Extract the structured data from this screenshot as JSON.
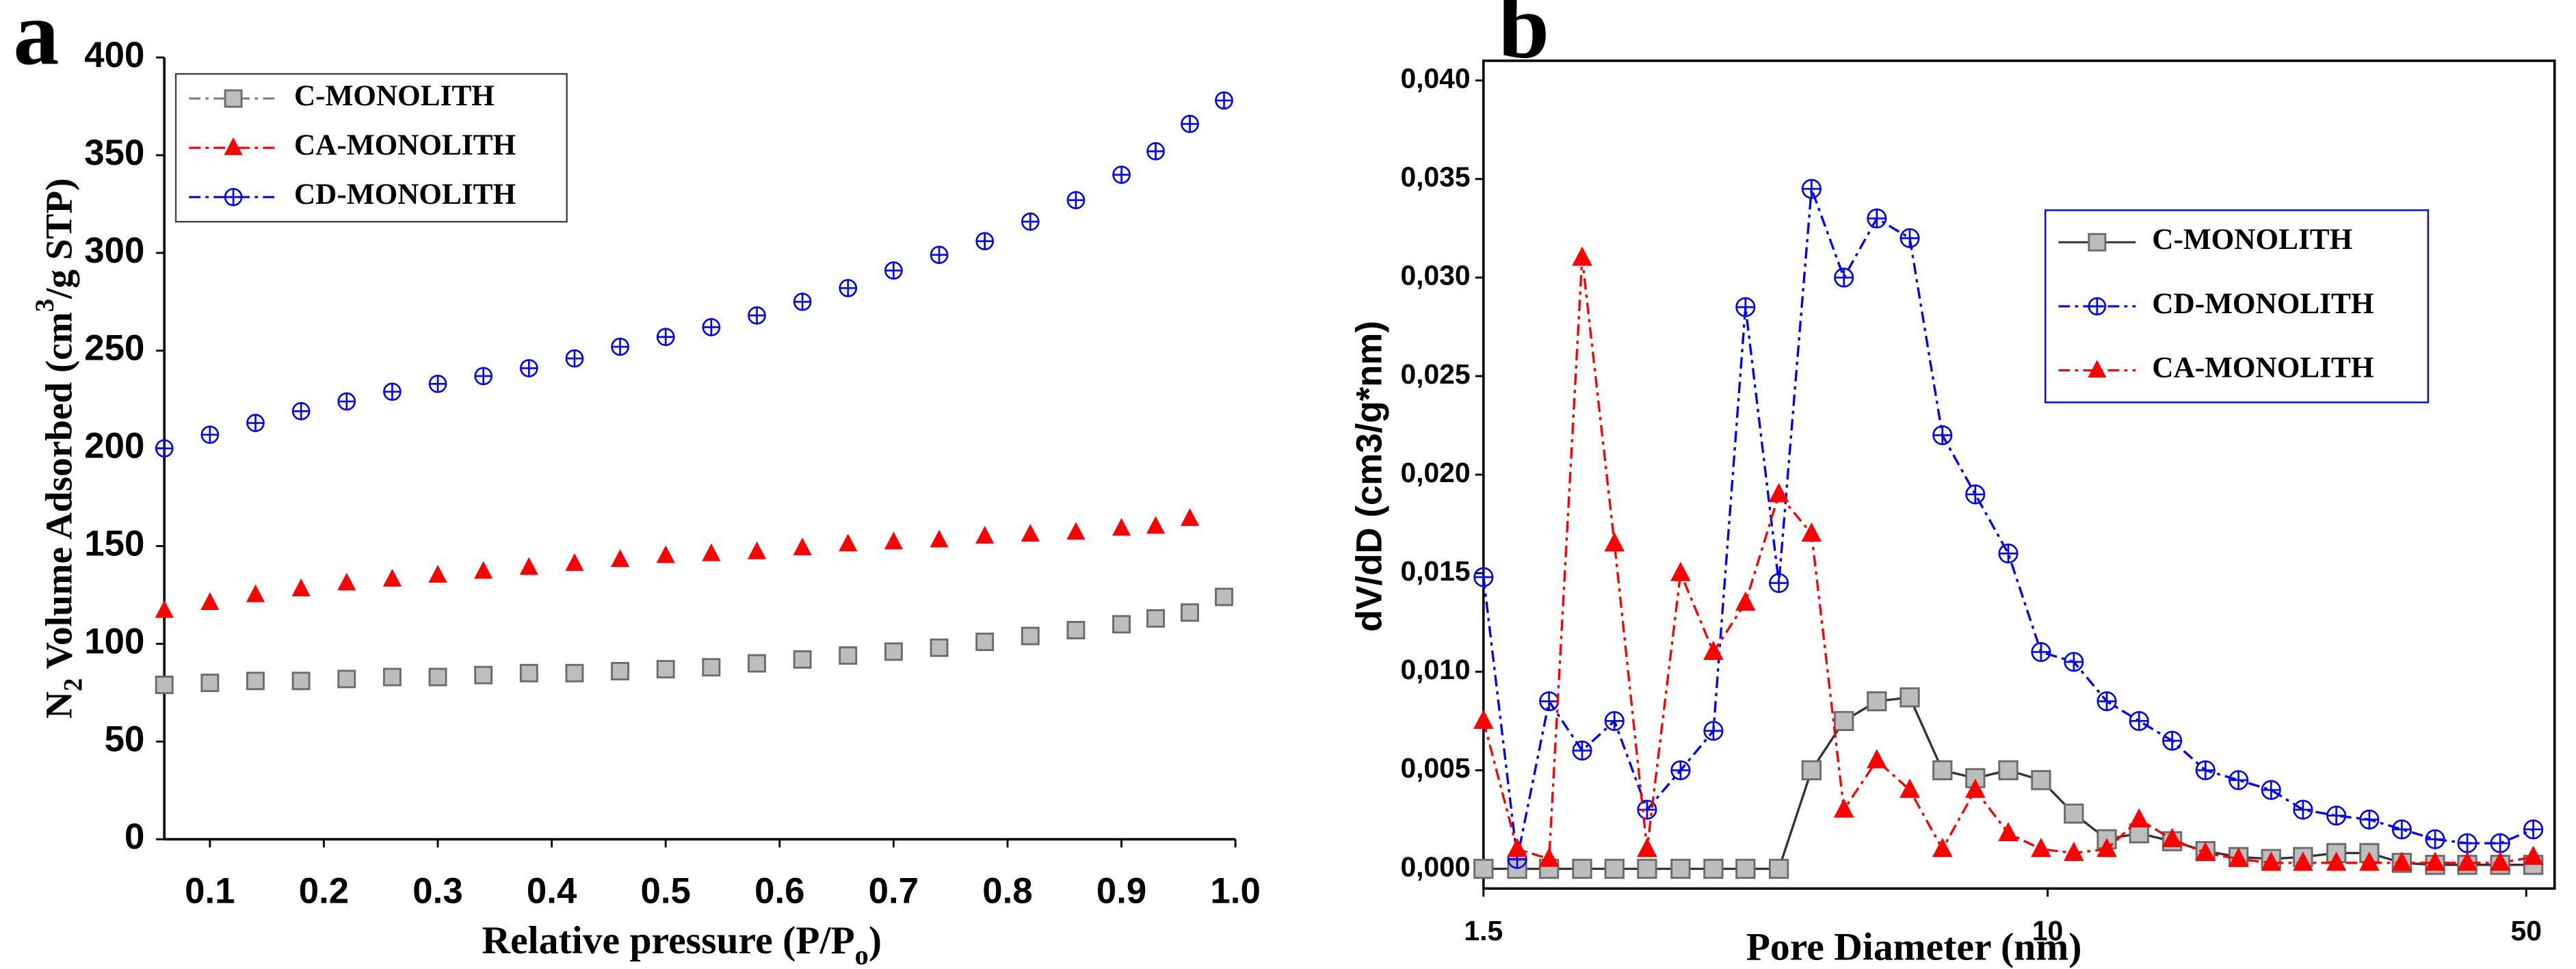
{
  "chart_data": [
    {
      "type": "scatter",
      "title": "a",
      "xlabel": [
        "Relative pressure (P/P",
        "o",
        ")"
      ],
      "ylabel": [
        "N",
        "2",
        " Volume Adsorbed (cm",
        "3",
        "/g STP)"
      ],
      "x": [
        0.06,
        0.1,
        0.14,
        0.18,
        0.22,
        0.26,
        0.3,
        0.34,
        0.38,
        0.42,
        0.46,
        0.5,
        0.54,
        0.58,
        0.62,
        0.66,
        0.7,
        0.74,
        0.78,
        0.82,
        0.86,
        0.9,
        0.93,
        0.96,
        0.99
      ],
      "series": [
        {
          "name": "C-MONOLITH",
          "color": "#808080",
          "marker": "square",
          "values": [
            79,
            80,
            81,
            81,
            82,
            83,
            83,
            84,
            85,
            85,
            86,
            87,
            88,
            90,
            92,
            94,
            96,
            98,
            101,
            104,
            107,
            110,
            113,
            116,
            124
          ]
        },
        {
          "name": "CA-MONOLITH",
          "color": "#ff0000",
          "marker": "triangle",
          "values": [
            117,
            121,
            125,
            128,
            131,
            133,
            135,
            137,
            139,
            141,
            143,
            145,
            146,
            147,
            149,
            151,
            152,
            153,
            155,
            156,
            157,
            159,
            160,
            164,
            null
          ]
        },
        {
          "name": "CD-MONOLITH",
          "color": "#0000ff",
          "marker": "circle-cross",
          "values": [
            200,
            207,
            213,
            219,
            224,
            229,
            233,
            237,
            241,
            246,
            252,
            257,
            262,
            268,
            275,
            282,
            291,
            299,
            306,
            316,
            327,
            340,
            352,
            366,
            378
          ]
        }
      ],
      "xlim": [
        0.06,
        1.0
      ],
      "xticks": [
        0.1,
        0.2,
        0.3,
        0.4,
        0.5,
        0.6,
        0.7,
        0.8,
        0.9,
        {
          "value": 1,
          "label": "1.0"
        }
      ],
      "ylim": [
        0,
        400
      ],
      "yticks": [
        0,
        50,
        100,
        150,
        200,
        250,
        300,
        350,
        400
      ],
      "legend": "upper left"
    },
    {
      "type": "line",
      "title": "b",
      "xlabel": [
        "Pore Diameter (nm)"
      ],
      "ylabel": [
        "dV/dD (cm3/g*nm)"
      ],
      "xscale": "log",
      "x": [
        1.5,
        1.68,
        1.87,
        2.09,
        2.33,
        2.6,
        2.91,
        3.25,
        3.62,
        4.05,
        4.52,
        5.04,
        5.63,
        6.29,
        7.02,
        7.84,
        8.76,
        9.78,
        10.92,
        12.2,
        13.6,
        15.2,
        17,
        19,
        21.2,
        23.6,
        26.4,
        29.5,
        32.9,
        36.8,
        41,
        45.8,
        51.2
      ],
      "series": [
        {
          "name": "C-MONOLITH",
          "color": "#808080",
          "marker": "square",
          "linestyle": "solid",
          "values": [
            0,
            0,
            0,
            0,
            0,
            0,
            0,
            0,
            0,
            0,
            0.005,
            0.0075,
            0.0085,
            0.0087,
            0.005,
            0.0046,
            0.005,
            0.0045,
            0.0028,
            0.0015,
            0.0018,
            0.0014,
            0.0009,
            0.0006,
            0.0005,
            0.0006,
            0.0008,
            0.0008,
            0.0003,
            0.0002,
            0.0002,
            0.0002,
            0.0002
          ]
        },
        {
          "name": "CD-MONOLITH",
          "color": "#0000ff",
          "marker": "circle-cross",
          "linestyle": "dashdot",
          "values": [
            0.0148,
            0.0005,
            0.0085,
            0.006,
            0.0075,
            0.003,
            0.005,
            0.007,
            0.0285,
            0.0145,
            0.0345,
            0.03,
            0.033,
            0.032,
            0.022,
            0.019,
            0.016,
            0.011,
            0.0105,
            0.0085,
            0.0075,
            0.0065,
            0.005,
            0.0045,
            0.004,
            0.003,
            0.0027,
            0.0025,
            0.002,
            0.0015,
            0.0013,
            0.0013,
            0.002
          ]
        },
        {
          "name": "CA-MONOLITH",
          "color": "#ff0000",
          "marker": "triangle",
          "linestyle": "dashdot",
          "values": [
            0.0075,
            0.001,
            0.0005,
            0.031,
            0.0165,
            0.001,
            0.015,
            0.011,
            0.0135,
            0.019,
            0.017,
            0.003,
            0.0055,
            0.004,
            0.001,
            0.004,
            0.0018,
            0.001,
            0.0008,
            0.001,
            0.0025,
            0.0015,
            0.0008,
            0.0005,
            0.0003,
            0.0003,
            0.0003,
            0.0003,
            0.0003,
            0.0003,
            0.0003,
            0.0003,
            0.0006
          ]
        }
      ],
      "xlim": [
        1.5,
        55
      ],
      "xticks": [
        1.5,
        10,
        50
      ],
      "ylim": [
        -0.001,
        0.041
      ],
      "yticks": [
        {
          "value": 0,
          "label": "0,000"
        },
        {
          "value": 0.005,
          "label": "0,005"
        },
        {
          "value": 0.01,
          "label": "0,010"
        },
        {
          "value": 0.015,
          "label": "0,015"
        },
        {
          "value": 0.02,
          "label": "0,020"
        },
        {
          "value": 0.025,
          "label": "0,025"
        },
        {
          "value": 0.03,
          "label": "0,030"
        },
        {
          "value": 0.035,
          "label": "0,035"
        },
        {
          "value": 0.04,
          "label": "0,040"
        }
      ],
      "legend": "upper right"
    }
  ]
}
